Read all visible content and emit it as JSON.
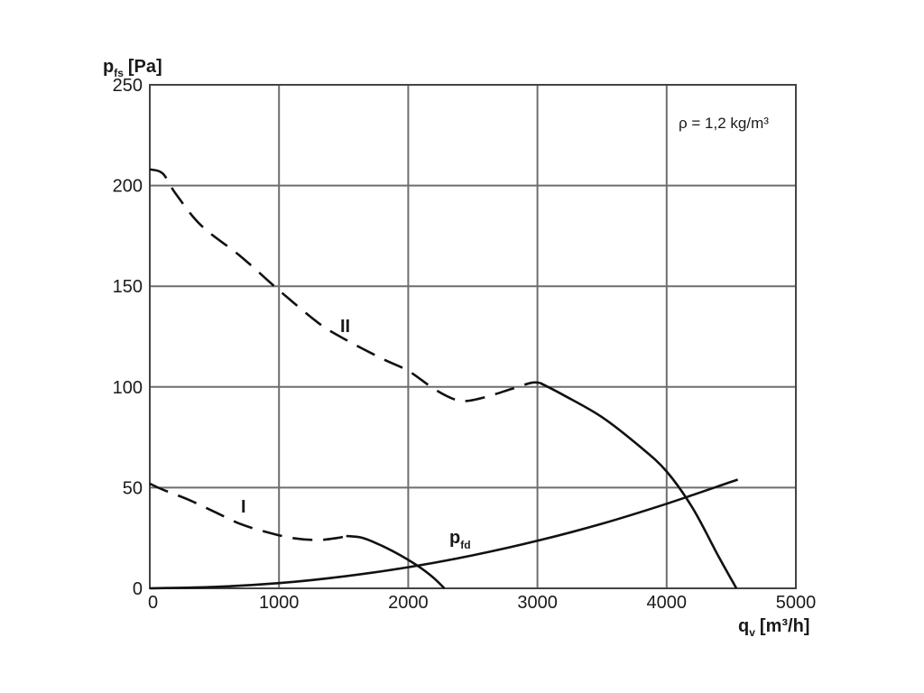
{
  "chart_data": {
    "type": "line",
    "ylabel": {
      "main": "p",
      "sub": "fs",
      "unit": "[Pa]"
    },
    "xlabel": {
      "main": "q",
      "sub": "v",
      "unit": "[m³/h]"
    },
    "xlim": [
      0,
      5000
    ],
    "ylim": [
      0,
      250
    ],
    "x_ticks": [
      "0",
      "1000",
      "2000",
      "3000",
      "4000",
      "5000"
    ],
    "y_ticks": [
      "0",
      "50",
      "100",
      "150",
      "200",
      "250"
    ],
    "grid": true,
    "annotation": "ρ = 1,2 kg/m³",
    "series": [
      {
        "name": "I",
        "segments": [
          {
            "style": "dashed",
            "points": [
              [
                0,
                52
              ],
              [
                100,
                49
              ],
              [
                300,
                44
              ],
              [
                500,
                38
              ],
              [
                700,
                32
              ],
              [
                900,
                28
              ],
              [
                1100,
                25
              ],
              [
                1300,
                24
              ],
              [
                1450,
                25
              ],
              [
                1520,
                26
              ]
            ]
          },
          {
            "style": "solid",
            "points": [
              [
                1520,
                26
              ],
              [
                1650,
                25
              ],
              [
                1800,
                21
              ],
              [
                1950,
                16
              ],
              [
                2100,
                10
              ],
              [
                2200,
                5
              ],
              [
                2280,
                0
              ]
            ]
          }
        ]
      },
      {
        "name": "II",
        "segments": [
          {
            "style": "dashed",
            "points": [
              [
                0,
                208
              ],
              [
                100,
                206
              ],
              [
                200,
                196
              ],
              [
                400,
                180
              ],
              [
                700,
                165
              ],
              [
                1000,
                148
              ],
              [
                1300,
                132
              ],
              [
                1500,
                124
              ],
              [
                1800,
                114
              ],
              [
                2000,
                108
              ],
              [
                2200,
                99
              ],
              [
                2350,
                94
              ],
              [
                2450,
                93
              ],
              [
                2600,
                95
              ],
              [
                2800,
                99
              ],
              [
                2950,
                102
              ],
              [
                3020,
                102
              ]
            ]
          },
          {
            "style": "solid",
            "points": [
              [
                3020,
                102
              ],
              [
                3200,
                96
              ],
              [
                3500,
                85
              ],
              [
                3800,
                70
              ],
              [
                4000,
                58
              ],
              [
                4200,
                40
              ],
              [
                4400,
                16
              ],
              [
                4540,
                0
              ]
            ]
          }
        ]
      },
      {
        "name": "p",
        "name_sub": "fd",
        "segments": [
          {
            "style": "solid",
            "points": [
              [
                0,
                0
              ],
              [
                500,
                0.7
              ],
              [
                1000,
                2.6
              ],
              [
                1500,
                5.9
              ],
              [
                2000,
                10.5
              ],
              [
                2500,
                16.4
              ],
              [
                3000,
                23.6
              ],
              [
                3500,
                32.1
              ],
              [
                4000,
                42
              ],
              [
                4550,
                54
              ]
            ]
          }
        ]
      }
    ]
  }
}
